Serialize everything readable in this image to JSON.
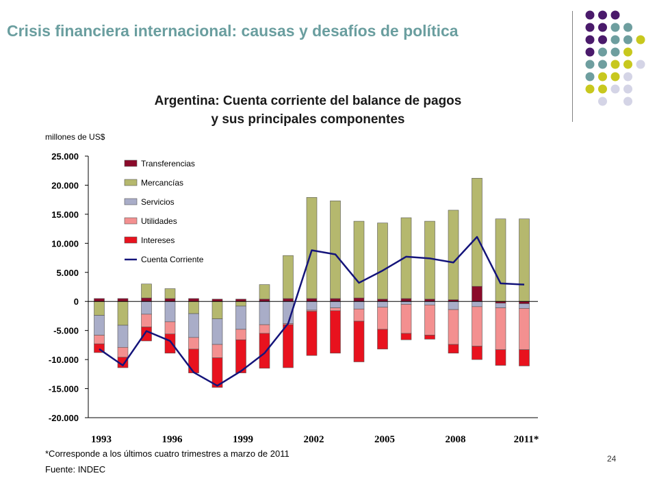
{
  "slide": {
    "title": "Crisis financiera internacional: causas y desafíos de política",
    "page_number": "24",
    "footnote": "*Corresponde a los últimos cuatro trimestres a marzo de 2011",
    "source": "Fuente: INDEC",
    "dot_colors": {
      "purple": "#4a1a6b",
      "teal": "#6e9e9f",
      "yellow": "#c8c81e",
      "lavender": "#d4d4e6"
    }
  },
  "chart_data": {
    "type": "bar",
    "stacked": true,
    "title_lines": [
      "Argentina: Cuenta corriente del balance de pagos",
      "y sus principales componentes"
    ],
    "ylabel": "millones de US$",
    "ylim": [
      -20000,
      25000
    ],
    "yticks": [
      25000,
      20000,
      15000,
      10000,
      5000,
      0,
      -5000,
      -10000,
      -15000,
      -20000
    ],
    "ytick_labels": [
      "25.000",
      "20.000",
      "15.000",
      "10.000",
      "5.000",
      "0",
      "-5.000",
      "-10.000",
      "-15.000",
      "-20.000"
    ],
    "categories": [
      "1993",
      "1994",
      "1995",
      "1996",
      "1997",
      "1998",
      "1999",
      "2000",
      "2001",
      "2002",
      "2003",
      "2004",
      "2005",
      "2006",
      "2007",
      "2008",
      "2009",
      "2010",
      "2011*"
    ],
    "xtick_labels": [
      "1993",
      "",
      "",
      "1996",
      "",
      "",
      "1999",
      "",
      "",
      "2002",
      "",
      "",
      "2005",
      "",
      "",
      "2008",
      "",
      "",
      "2011*"
    ],
    "series": [
      {
        "name": "Transferencias",
        "color": "#8b0a2a",
        "values": [
          500,
          500,
          600,
          500,
          500,
          400,
          400,
          400,
          500,
          500,
          500,
          600,
          400,
          500,
          400,
          300,
          2600,
          -300,
          -400
        ]
      },
      {
        "name": "Mercancías",
        "color": "#b5b86e",
        "values": [
          -2400,
          -4100,
          2400,
          1700,
          -2100,
          -3000,
          -800,
          2500,
          7400,
          17400,
          16800,
          13200,
          13100,
          13900,
          13400,
          15400,
          18600,
          14200,
          14200
        ]
      },
      {
        "name": "Servicios",
        "color": "#a9adc8",
        "values": [
          -3400,
          -3800,
          -2200,
          -3500,
          -4100,
          -4400,
          -4000,
          -4000,
          -3800,
          -1500,
          -1100,
          -1300,
          -1000,
          -500,
          -600,
          -1400,
          -900,
          -800,
          -800
        ]
      },
      {
        "name": "Utilidades",
        "color": "#f39090",
        "values": [
          -1500,
          -1700,
          -2200,
          -2100,
          -2000,
          -2300,
          -1800,
          -1500,
          -200,
          -200,
          -500,
          -2100,
          -3800,
          -5000,
          -5200,
          -6000,
          -6800,
          -7200,
          -7100
        ]
      },
      {
        "name": "Intereses",
        "color": "#e8121e",
        "values": [
          -1500,
          -1800,
          -2400,
          -3300,
          -4100,
          -5100,
          -5700,
          -6000,
          -7400,
          -7600,
          -7300,
          -7000,
          -3400,
          -1100,
          -700,
          -1500,
          -2300,
          -2700,
          -2800
        ]
      }
    ],
    "line_series": {
      "name": "Cuenta Corriente",
      "color": "#14147a",
      "values": [
        -8200,
        -11000,
        -5100,
        -6800,
        -12200,
        -14500,
        -12000,
        -8900,
        -3800,
        8800,
        8100,
        3200,
        5300,
        7700,
        7400,
        6700,
        11100,
        3100,
        2900
      ]
    },
    "legend_position": "top-left",
    "grid": false
  }
}
